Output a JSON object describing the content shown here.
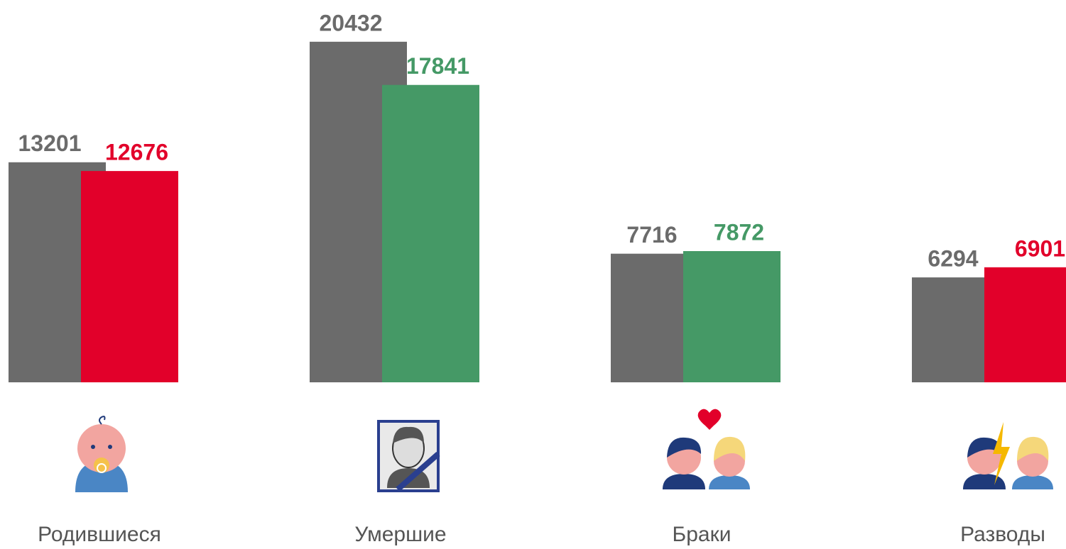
{
  "chart_data": {
    "type": "bar",
    "categories": [
      "Родившиеся",
      "Умершие",
      "Браки",
      "Разводы"
    ],
    "series": [
      {
        "color": "#6b6b6b",
        "values": [
          13201,
          20432,
          7716,
          6294
        ]
      },
      {
        "colors": [
          "#e2002a",
          "#459966",
          "#459966",
          "#e2002a"
        ],
        "values": [
          12676,
          17841,
          7872,
          6901
        ]
      }
    ],
    "ylim": [
      0,
      22000
    ]
  }
}
